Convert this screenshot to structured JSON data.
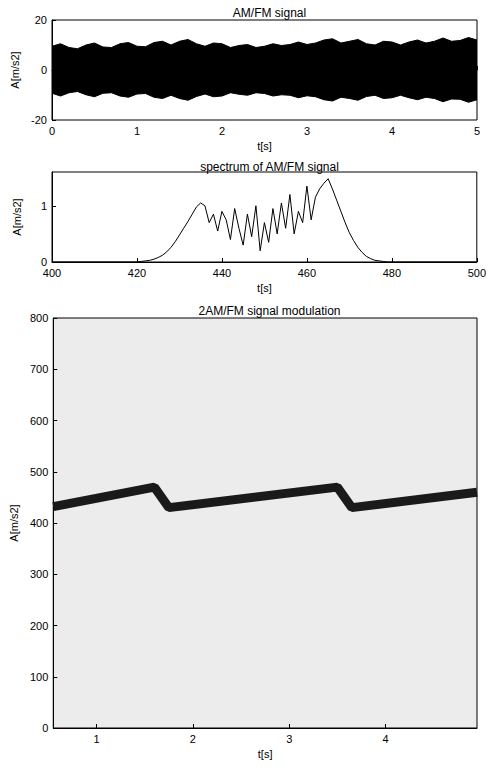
{
  "chart_data": [
    {
      "type": "area",
      "title": "AM/FM signal",
      "xlabel": "t[s]",
      "ylabel": "A[m/s2]",
      "x": [
        0,
        0.1,
        0.2,
        0.3,
        0.4,
        0.5,
        0.6,
        0.7,
        0.8,
        0.9,
        1.0,
        1.1,
        1.2,
        1.3,
        1.4,
        1.5,
        1.6,
        1.7,
        1.8,
        1.9,
        2.0,
        2.1,
        2.2,
        2.3,
        2.4,
        2.5,
        2.6,
        2.7,
        2.8,
        2.9,
        3.0,
        3.1,
        3.2,
        3.3,
        3.4,
        3.5,
        3.6,
        3.7,
        3.8,
        3.9,
        4.0,
        4.1,
        4.2,
        4.3,
        4.4,
        4.5,
        4.6,
        4.7,
        4.8,
        4.9,
        5.0
      ],
      "series": [
        {
          "color": "#000000",
          "values": [
            9.5,
            10.5,
            9,
            8.5,
            10,
            10.8,
            9.2,
            9,
            10.5,
            11,
            9.5,
            9.3,
            11,
            11.5,
            10,
            11.5,
            12.2,
            10.5,
            9.5,
            10.8,
            10.5,
            9,
            9.8,
            10.2,
            9,
            9.5,
            10.5,
            9.8,
            10.2,
            11.2,
            10.2,
            10.8,
            12,
            12.5,
            10.8,
            11.5,
            12.2,
            10.5,
            10,
            11.5,
            11.2,
            10,
            11.2,
            12,
            10.8,
            11.5,
            12.8,
            11.5,
            11.8,
            13,
            12
          ]
        },
        {
          "color": "#000000",
          "values": [
            -9.3,
            -10.4,
            -9.1,
            -8.6,
            -9.9,
            -10.7,
            -9.3,
            -9.1,
            -10.4,
            -10.9,
            -9.6,
            -9.4,
            -10.9,
            -11.4,
            -10.1,
            -11.4,
            -12.1,
            -10.6,
            -9.6,
            -10.7,
            -10.4,
            -9.1,
            -9.7,
            -10.1,
            -9.1,
            -9.4,
            -10.4,
            -9.9,
            -10.1,
            -11.1,
            -10.3,
            -10.7,
            -11.9,
            -12.4,
            -10.9,
            -11.4,
            -12.1,
            -10.6,
            -10.1,
            -11.4,
            -11.1,
            -10.1,
            -11.1,
            -11.9,
            -10.9,
            -11.4,
            -12.7,
            -11.6,
            -11.7,
            -12.9,
            -11.9
          ]
        }
      ],
      "xlim": [
        0,
        5
      ],
      "xticks": [
        0,
        1,
        2,
        3,
        4,
        5
      ],
      "ylim": [
        -20,
        20
      ],
      "yticks": [
        -20,
        0,
        20
      ],
      "grid": false
    },
    {
      "type": "line",
      "title": "spectrum of AM/FM signal",
      "xlabel": "t[s]",
      "ylabel": "A[m/s2]",
      "x": [
        400,
        420,
        421,
        422,
        423,
        424,
        425,
        426,
        427,
        428,
        429,
        430,
        431,
        432,
        433,
        434,
        435,
        436,
        437,
        438,
        439,
        440,
        441,
        442,
        443,
        444,
        445,
        446,
        447,
        448,
        449,
        450,
        451,
        452,
        453,
        454,
        455,
        456,
        457,
        458,
        459,
        460,
        461,
        462,
        463,
        464,
        465,
        466,
        467,
        468,
        469,
        470,
        471,
        472,
        473,
        474,
        475,
        476,
        477,
        478,
        479,
        500
      ],
      "series": [
        {
          "color": "#000000",
          "values": [
            0,
            0,
            0.01,
            0.02,
            0.03,
            0.05,
            0.08,
            0.12,
            0.18,
            0.26,
            0.36,
            0.48,
            0.6,
            0.72,
            0.85,
            0.98,
            1.05,
            1.0,
            0.7,
            0.85,
            0.55,
            0.9,
            0.75,
            0.4,
            0.95,
            0.6,
            0.3,
            0.85,
            0.45,
            1.0,
            0.2,
            0.7,
            0.35,
            0.95,
            0.5,
            1.05,
            0.6,
            1.2,
            0.5,
            0.9,
            0.7,
            1.35,
            0.75,
            1.15,
            1.3,
            1.4,
            1.48,
            1.3,
            1.1,
            0.9,
            0.7,
            0.52,
            0.38,
            0.26,
            0.17,
            0.1,
            0.06,
            0.03,
            0.02,
            0.01,
            0,
            0
          ]
        }
      ],
      "xlim": [
        400,
        500
      ],
      "xticks": [
        400,
        420,
        440,
        460,
        480,
        500
      ],
      "ylim": [
        0,
        1.6
      ],
      "yticks": [
        0,
        1
      ],
      "grid": false
    },
    {
      "type": "line",
      "title": "2AM/FM signal modulation",
      "xlabel": "t[s]",
      "ylabel": "A[m/s2]",
      "x": [
        0.55,
        1.6,
        1.75,
        3.5,
        3.65,
        4.95
      ],
      "series": [
        {
          "color": "#1a1a1a",
          "values": [
            432,
            470,
            430,
            470,
            430,
            460
          ]
        }
      ],
      "xlim": [
        0.55,
        4.95
      ],
      "xticks": [
        1,
        2,
        3,
        4
      ],
      "ylim": [
        0,
        800
      ],
      "yticks": [
        0,
        100,
        200,
        300,
        400,
        500,
        600,
        700,
        800
      ],
      "grid": false
    }
  ]
}
